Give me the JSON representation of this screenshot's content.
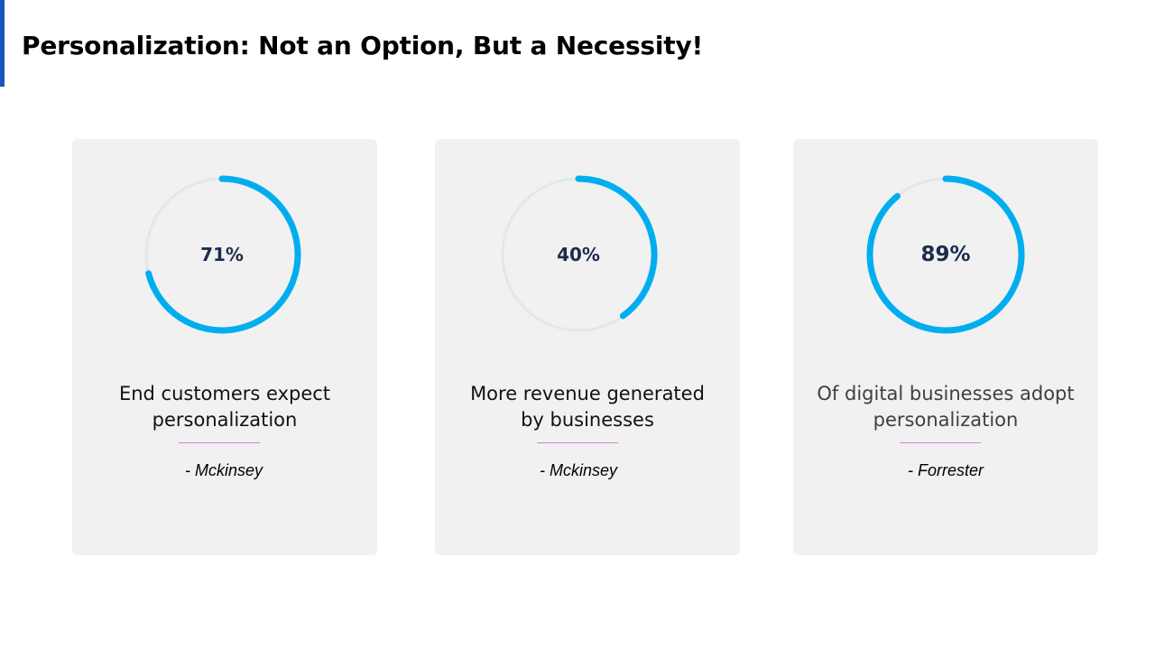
{
  "slide": {
    "title": "Personalization: Not an Option, But a Necessity!",
    "accent_color": "#1657b8"
  },
  "colors": {
    "ring_fill": "#00aeef",
    "ring_track": "#e2e8e8",
    "card_background": "#f1f1f1",
    "value_text": "#1c2c4c",
    "divider": "#d67fd2"
  },
  "chart_data": [
    {
      "type": "donut",
      "value_label": "71%",
      "percent": 71,
      "description_lines": [
        "End customers expect",
        "personalization"
      ],
      "source": "- Mckinsey"
    },
    {
      "type": "donut",
      "value_label": "40%",
      "percent": 40,
      "description_lines": [
        "More revenue generated",
        "by businesses"
      ],
      "source": "- Mckinsey"
    },
    {
      "type": "donut",
      "value_label": "89%",
      "percent": 89,
      "description_lines": [
        "Of digital businesses adopt",
        "personalization"
      ],
      "source": "- Forrester"
    }
  ]
}
